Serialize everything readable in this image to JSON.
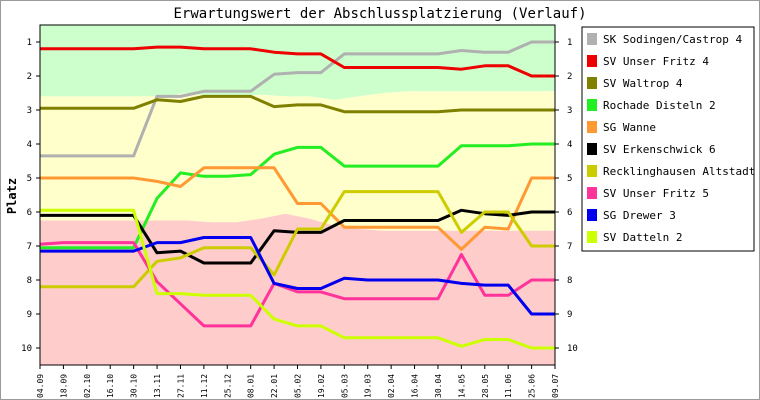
{
  "chart_data": {
    "type": "line",
    "title": "Erwartungswert der Abschlussplatzierung (Verlauf)",
    "xlabel": "",
    "ylabel": "Platz",
    "ylim": [
      10.5,
      0.5
    ],
    "ytick_labels": [
      "1",
      "2",
      "3",
      "4",
      "5",
      "6",
      "7",
      "8",
      "9",
      "10"
    ],
    "grid": false,
    "legend_position": "right",
    "background_zones": [
      {
        "name": "promotion",
        "color": "#ccffcc"
      },
      {
        "name": "mid",
        "color": "#ffffcc"
      },
      {
        "name": "relegation",
        "color": "#ffcccc"
      }
    ],
    "zone_boundaries": {
      "green_yellow": [
        2.6,
        2.6,
        2.6,
        2.6,
        2.6,
        2.6,
        2.5,
        2.6,
        2.6,
        2.55,
        2.6,
        2.6,
        2.7,
        2.6,
        2.5,
        2.45,
        2.45,
        2.45,
        2.45,
        2.45,
        2.45,
        2.45
      ],
      "yellow_red": [
        6.25,
        6.25,
        6.25,
        6.25,
        6.25,
        6.25,
        6.25,
        6.3,
        6.3,
        6.2,
        6.05,
        6.2,
        6.4,
        6.5,
        6.55,
        6.55,
        6.55,
        6.55,
        6.55,
        6.55,
        6.55,
        6.55
      ]
    },
    "categories": [
      "04.09",
      "18.09",
      "02.10",
      "16.10",
      "30.10",
      "13.11",
      "27.11",
      "11.12",
      "25.12",
      "08.01",
      "22.01",
      "05.02",
      "19.02",
      "05.03",
      "19.03",
      "02.04",
      "16.04",
      "30.04",
      "14.05",
      "28.05",
      "11.06",
      "25.06",
      "09.07"
    ],
    "series": [
      {
        "name": "SK Sodingen/Castrop 4",
        "color": "#b0b0b0",
        "values": [
          4.35,
          4.35,
          4.35,
          4.35,
          4.35,
          2.6,
          2.6,
          2.45,
          2.45,
          2.45,
          1.95,
          1.9,
          1.9,
          1.35,
          1.35,
          1.35,
          1.35,
          1.35,
          1.25,
          1.3,
          1.3,
          1.0,
          1.0
        ]
      },
      {
        "name": "SV Unser Fritz 4",
        "color": "#ee0000",
        "values": [
          1.2,
          1.2,
          1.2,
          1.2,
          1.2,
          1.15,
          1.15,
          1.2,
          1.2,
          1.2,
          1.3,
          1.35,
          1.35,
          1.75,
          1.75,
          1.75,
          1.75,
          1.75,
          1.8,
          1.7,
          1.7,
          2.0,
          2.0
        ]
      },
      {
        "name": "SV Waltrop 4",
        "color": "#808000",
        "values": [
          2.95,
          2.95,
          2.95,
          2.95,
          2.95,
          2.7,
          2.75,
          2.6,
          2.6,
          2.6,
          2.9,
          2.85,
          2.85,
          3.05,
          3.05,
          3.05,
          3.05,
          3.05,
          3.0,
          3.0,
          3.0,
          3.0,
          3.0
        ]
      },
      {
        "name": "Rochade Disteln 2",
        "color": "#22ee22",
        "values": [
          7.05,
          7.05,
          7.05,
          7.05,
          7.05,
          5.6,
          4.85,
          4.95,
          4.95,
          4.9,
          4.3,
          4.1,
          4.1,
          4.65,
          4.65,
          4.65,
          4.65,
          4.65,
          4.05,
          4.05,
          4.05,
          4.0,
          4.0
        ]
      },
      {
        "name": "SG Wanne",
        "color": "#ff9933",
        "values": [
          5.0,
          5.0,
          5.0,
          5.0,
          5.0,
          5.1,
          5.25,
          4.7,
          4.7,
          4.7,
          4.7,
          5.75,
          5.75,
          6.45,
          6.45,
          6.45,
          6.45,
          6.45,
          7.1,
          6.45,
          6.5,
          5.0,
          5.0
        ]
      },
      {
        "name": "SV Erkenschwick 6",
        "color": "#000000",
        "values": [
          6.1,
          6.1,
          6.1,
          6.1,
          6.1,
          7.2,
          7.15,
          7.5,
          7.5,
          7.5,
          6.55,
          6.6,
          6.6,
          6.25,
          6.25,
          6.25,
          6.25,
          6.25,
          5.95,
          6.05,
          6.1,
          6.0,
          6.0
        ]
      },
      {
        "name": "Recklinghausen Altstadt 2",
        "color": "#cccc00",
        "values": [
          8.2,
          8.2,
          8.2,
          8.2,
          8.2,
          7.45,
          7.35,
          7.05,
          7.05,
          7.05,
          7.85,
          6.5,
          6.5,
          5.4,
          5.4,
          5.4,
          5.4,
          5.4,
          6.6,
          6.0,
          6.0,
          7.0,
          7.0
        ]
      },
      {
        "name": "SV Unser Fritz 5",
        "color": "#ff3399",
        "values": [
          6.95,
          6.9,
          6.9,
          6.9,
          6.9,
          8.05,
          8.7,
          9.35,
          9.35,
          9.35,
          8.1,
          8.35,
          8.35,
          8.55,
          8.55,
          8.55,
          8.55,
          8.55,
          7.25,
          8.45,
          8.45,
          8.0,
          8.0
        ]
      },
      {
        "name": "SG Drewer 3",
        "color": "#0000ee",
        "values": [
          7.15,
          7.15,
          7.15,
          7.15,
          7.15,
          6.9,
          6.9,
          6.75,
          6.75,
          6.75,
          8.1,
          8.25,
          8.25,
          7.95,
          8.0,
          8.0,
          8.0,
          8.0,
          8.1,
          8.15,
          8.15,
          9.0,
          9.0
        ]
      },
      {
        "name": "SV Datteln 2",
        "color": "#ccff00",
        "values": [
          5.95,
          5.95,
          5.95,
          5.95,
          5.95,
          8.4,
          8.4,
          8.45,
          8.45,
          8.45,
          9.15,
          9.35,
          9.35,
          9.7,
          9.7,
          9.7,
          9.7,
          9.7,
          9.95,
          9.75,
          9.75,
          10.0,
          10.0
        ]
      }
    ]
  }
}
